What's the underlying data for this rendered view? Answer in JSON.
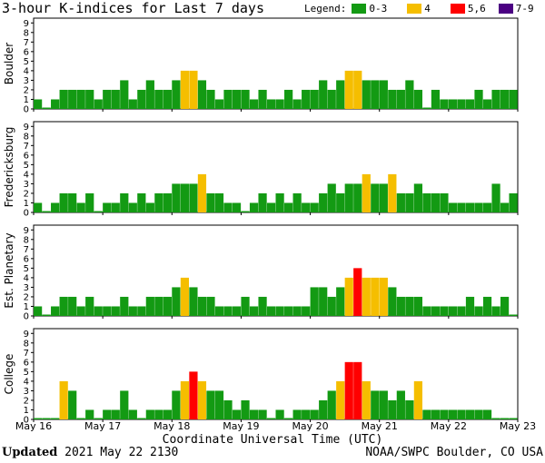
{
  "title": "3-hour K-indices for Last 7 days",
  "legend": {
    "label": "Legend:",
    "items": [
      {
        "label": "0-3",
        "color": "#139a13"
      },
      {
        "label": "4",
        "color": "#f5be00"
      },
      {
        "label": "5,6",
        "color": "#ff0000"
      },
      {
        "label": "7-9",
        "color": "#4b0082"
      }
    ]
  },
  "footer": {
    "updated_label": "Updated",
    "updated_value": "2021 May 22 2130",
    "credit": "NOAA/SWPC Boulder, CO USA"
  },
  "chart_data": {
    "type": "bar",
    "xlabel": "Coordinate Universal Time (UTC)",
    "x_ticks": [
      "May 16",
      "May 17",
      "May 18",
      "May 19",
      "May 20",
      "May 21",
      "May 22",
      "May 23"
    ],
    "ylim": [
      0,
      9
    ],
    "y_ticks": [
      "0",
      "1",
      "2",
      "3",
      "4",
      "5",
      "6",
      "7",
      "8",
      "9"
    ],
    "bar_interval_hours": 3,
    "colors": {
      "0-3": "#139a13",
      "4": "#f5be00",
      "5,6": "#ff0000",
      "7-9": "#4b0082"
    },
    "panels": [
      {
        "name": "Boulder",
        "values": [
          1,
          0,
          1,
          2,
          2,
          2,
          2,
          1,
          2,
          2,
          3,
          1,
          2,
          3,
          2,
          2,
          3,
          4,
          4,
          3,
          2,
          1,
          2,
          2,
          2,
          1,
          2,
          1,
          1,
          2,
          1,
          2,
          2,
          3,
          2,
          3,
          4,
          4,
          3,
          3,
          3,
          2,
          2,
          3,
          2,
          0,
          2,
          1,
          1,
          1,
          1,
          2,
          1,
          2,
          2,
          2,
          0
        ]
      },
      {
        "name": "Fredericksburg",
        "values": [
          1,
          0,
          1,
          2,
          2,
          1,
          2,
          0,
          1,
          1,
          2,
          1,
          2,
          1,
          2,
          2,
          3,
          3,
          3,
          4,
          2,
          2,
          1,
          1,
          0,
          1,
          2,
          1,
          2,
          1,
          2,
          1,
          1,
          2,
          3,
          2,
          3,
          3,
          4,
          3,
          3,
          4,
          2,
          2,
          3,
          2,
          2,
          2,
          1,
          1,
          1,
          1,
          1,
          3,
          1,
          2,
          0
        ]
      },
      {
        "name": "Est. Planetary",
        "values": [
          1,
          0,
          1,
          2,
          2,
          1,
          2,
          1,
          1,
          1,
          2,
          1,
          1,
          2,
          2,
          2,
          3,
          4,
          3,
          2,
          2,
          1,
          1,
          1,
          2,
          1,
          2,
          1,
          1,
          1,
          1,
          1,
          3,
          3,
          2,
          3,
          4,
          5,
          4,
          4,
          4,
          3,
          2,
          2,
          2,
          1,
          1,
          1,
          1,
          1,
          2,
          1,
          2,
          1,
          2,
          0,
          0
        ]
      },
      {
        "name": "College",
        "values": [
          0,
          0,
          0,
          4,
          3,
          0,
          1,
          0,
          1,
          1,
          3,
          1,
          0,
          1,
          1,
          1,
          3,
          4,
          5,
          4,
          3,
          3,
          2,
          1,
          2,
          1,
          1,
          0,
          1,
          0,
          1,
          1,
          1,
          2,
          3,
          4,
          6,
          6,
          4,
          3,
          3,
          2,
          3,
          2,
          4,
          1,
          1,
          1,
          1,
          1,
          1,
          1,
          1,
          0,
          0,
          0,
          0
        ]
      }
    ]
  }
}
